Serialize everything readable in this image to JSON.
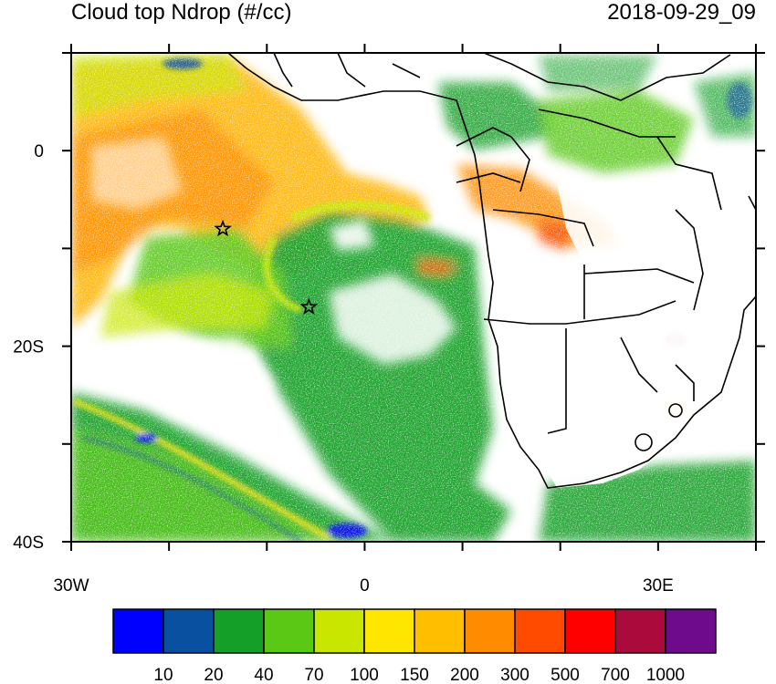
{
  "header": {
    "title": "Cloud top Ndrop (#/cc)",
    "datetime": "2018-09-29_09"
  },
  "map": {
    "projection": "lat-lon",
    "lon_range": [
      -30,
      40
    ],
    "lat_range": [
      -40,
      10
    ],
    "lat_ticks": [
      {
        "value": 0,
        "label": "0"
      },
      {
        "value": -20,
        "label": "20S"
      },
      {
        "value": -40,
        "label": "40S"
      }
    ],
    "lon_ticks": [
      {
        "value": -30,
        "label": "30W"
      },
      {
        "value": 0,
        "label": "0"
      },
      {
        "value": 30,
        "label": "30E"
      }
    ],
    "markers": [
      {
        "name": "star-marker",
        "lon": -14.5,
        "lat": -8
      },
      {
        "name": "star-marker",
        "lon": -5.7,
        "lat": -16
      }
    ]
  },
  "colorbar": {
    "colors": [
      "#0000ff",
      "#0a50a0",
      "#14a028",
      "#5ac814",
      "#c8e600",
      "#ffe600",
      "#ffbe00",
      "#ff8c00",
      "#ff4b00",
      "#ff0000",
      "#aa0a3c",
      "#6e0a8c"
    ],
    "labels": [
      "10",
      "20",
      "40",
      "70",
      "100",
      "150",
      "200",
      "300",
      "500",
      "700",
      "1000"
    ]
  }
}
